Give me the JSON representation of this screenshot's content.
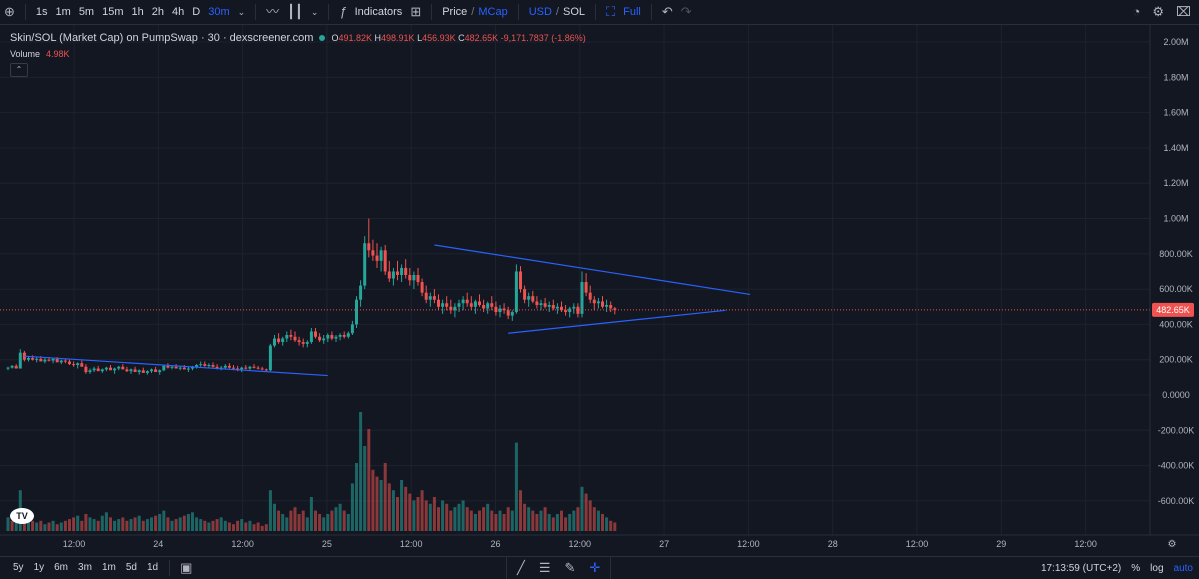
{
  "toolbar": {
    "intervals": [
      "1s",
      "1m",
      "5m",
      "15m",
      "1h",
      "2h",
      "4h",
      "D",
      "30m"
    ],
    "active_interval": "30m",
    "indicators_label": "Indicators",
    "price_label": "Price",
    "mcap_label": "MCap",
    "usd_label": "USD",
    "sol_label": "SOL",
    "full_label": "Full",
    "icons": [
      "plus-circle-icon",
      "line-chart-icon",
      "candles-icon",
      "fx-icon",
      "layout-grid-icon",
      "undo-icon",
      "redo-icon",
      "screenshot-icon",
      "gear-icon",
      "camera-icon"
    ]
  },
  "legend": {
    "symbol": "Skin/SOL (Market Cap) on PumpSwap · 30 · dexscreener.com",
    "o_key": "O",
    "o": "491.82K",
    "h_key": "H",
    "h": "498.91K",
    "l_key": "L",
    "l": "456.93K",
    "c_key": "C",
    "c": "482.65K",
    "change": "-9,171.7837 (-1.86%)",
    "volume_label": "Volume",
    "volume_value": "4.98K"
  },
  "colors": {
    "up": "#26a69a",
    "down": "#ef5350",
    "trendline": "#2962ff",
    "background": "#131722",
    "grid": "#1e222d"
  },
  "chart_data": {
    "type": "candlestick",
    "title": "Skin/SOL (Market Cap) on PumpSwap · 30 · dexscreener.com",
    "y_ticks": [
      "2.00M",
      "1.80M",
      "1.60M",
      "1.40M",
      "1.20M",
      "1.00M",
      "800.00K",
      "600.00K",
      "400.00K",
      "200.00K",
      "0.0000",
      "-200.00K",
      "-400.00K",
      "-600.00K"
    ],
    "ylim": [
      -680000,
      2040000
    ],
    "x_ticks": [
      "12:00",
      "24",
      "12:00",
      "25",
      "12:00",
      "26",
      "12:00",
      "27",
      "12:00",
      "28",
      "12:00",
      "29",
      "12:00"
    ],
    "last_price": 482650,
    "last_price_label": "482.65K",
    "candles": [
      [
        0,
        150,
        160,
        140,
        155
      ],
      [
        1,
        155,
        170,
        150,
        165
      ],
      [
        2,
        165,
        175,
        160,
        150
      ],
      [
        3,
        150,
        260,
        150,
        240
      ],
      [
        4,
        240,
        250,
        190,
        200
      ],
      [
        5,
        200,
        220,
        190,
        210
      ],
      [
        6,
        210,
        225,
        195,
        200
      ],
      [
        7,
        200,
        215,
        185,
        205
      ],
      [
        8,
        205,
        220,
        195,
        190
      ],
      [
        9,
        190,
        210,
        180,
        200
      ],
      [
        10,
        200,
        215,
        190,
        195
      ],
      [
        11,
        195,
        210,
        180,
        205
      ],
      [
        12,
        205,
        215,
        190,
        185
      ],
      [
        13,
        185,
        200,
        175,
        195
      ],
      [
        14,
        195,
        205,
        180,
        190
      ],
      [
        15,
        190,
        200,
        170,
        175
      ],
      [
        16,
        175,
        190,
        160,
        170
      ],
      [
        17,
        170,
        185,
        150,
        180
      ],
      [
        18,
        180,
        195,
        170,
        160
      ],
      [
        19,
        160,
        175,
        120,
        130
      ],
      [
        20,
        130,
        150,
        120,
        140
      ],
      [
        21,
        140,
        160,
        130,
        150
      ],
      [
        22,
        150,
        165,
        140,
        135
      ],
      [
        23,
        135,
        150,
        125,
        145
      ],
      [
        24,
        145,
        160,
        135,
        155
      ],
      [
        25,
        155,
        170,
        145,
        140
      ],
      [
        26,
        140,
        155,
        120,
        150
      ],
      [
        27,
        150,
        165,
        140,
        160
      ],
      [
        28,
        160,
        175,
        150,
        145
      ],
      [
        29,
        145,
        160,
        130,
        135
      ],
      [
        30,
        135,
        150,
        120,
        145
      ],
      [
        31,
        145,
        160,
        135,
        130
      ],
      [
        32,
        130,
        145,
        115,
        140
      ],
      [
        33,
        140,
        155,
        130,
        125
      ],
      [
        34,
        125,
        140,
        115,
        135
      ],
      [
        35,
        135,
        150,
        125,
        145
      ],
      [
        36,
        145,
        160,
        135,
        130
      ],
      [
        37,
        130,
        145,
        115,
        140
      ],
      [
        38,
        140,
        170,
        135,
        165
      ],
      [
        39,
        165,
        180,
        150,
        155
      ],
      [
        40,
        155,
        170,
        145,
        160
      ],
      [
        41,
        160,
        175,
        150,
        150
      ],
      [
        42,
        150,
        165,
        140,
        155
      ],
      [
        43,
        155,
        170,
        145,
        145
      ],
      [
        44,
        145,
        160,
        130,
        150
      ],
      [
        45,
        150,
        165,
        140,
        160
      ],
      [
        46,
        160,
        175,
        150,
        170
      ],
      [
        47,
        170,
        190,
        160,
        175
      ],
      [
        48,
        175,
        190,
        160,
        165
      ],
      [
        49,
        165,
        180,
        150,
        170
      ],
      [
        50,
        170,
        185,
        155,
        160
      ],
      [
        51,
        160,
        175,
        145,
        150
      ],
      [
        52,
        150,
        165,
        140,
        155
      ],
      [
        53,
        155,
        175,
        145,
        165
      ],
      [
        54,
        165,
        180,
        150,
        155
      ],
      [
        55,
        155,
        170,
        140,
        150
      ],
      [
        56,
        150,
        165,
        135,
        145
      ],
      [
        57,
        145,
        160,
        130,
        155
      ],
      [
        58,
        155,
        170,
        145,
        150
      ],
      [
        59,
        150,
        165,
        140,
        160
      ],
      [
        60,
        160,
        175,
        150,
        155
      ],
      [
        61,
        155,
        165,
        145,
        150
      ],
      [
        62,
        150,
        160,
        140,
        145
      ],
      [
        63,
        145,
        150,
        135,
        140
      ],
      [
        64,
        140,
        290,
        135,
        280
      ],
      [
        65,
        280,
        340,
        270,
        320
      ],
      [
        66,
        320,
        350,
        290,
        300
      ],
      [
        67,
        300,
        330,
        280,
        320
      ],
      [
        68,
        320,
        360,
        300,
        340
      ],
      [
        69,
        340,
        370,
        310,
        330
      ],
      [
        70,
        330,
        360,
        300,
        310
      ],
      [
        71,
        310,
        330,
        280,
        300
      ],
      [
        72,
        300,
        320,
        270,
        290
      ],
      [
        73,
        290,
        310,
        270,
        300
      ],
      [
        74,
        300,
        380,
        290,
        360
      ],
      [
        75,
        360,
        380,
        320,
        330
      ],
      [
        76,
        330,
        350,
        300,
        310
      ],
      [
        77,
        310,
        340,
        290,
        320
      ],
      [
        78,
        320,
        350,
        300,
        340
      ],
      [
        79,
        340,
        360,
        310,
        320
      ],
      [
        80,
        320,
        340,
        300,
        330
      ],
      [
        81,
        330,
        350,
        310,
        340
      ],
      [
        82,
        340,
        360,
        320,
        330
      ],
      [
        83,
        330,
        360,
        320,
        350
      ],
      [
        84,
        350,
        420,
        340,
        400
      ],
      [
        85,
        400,
        560,
        380,
        540
      ],
      [
        86,
        540,
        650,
        500,
        620
      ],
      [
        87,
        620,
        900,
        600,
        860
      ],
      [
        88,
        860,
        1000,
        780,
        820
      ],
      [
        89,
        820,
        880,
        760,
        790
      ],
      [
        90,
        790,
        860,
        720,
        760
      ],
      [
        91,
        760,
        840,
        700,
        820
      ],
      [
        92,
        820,
        850,
        680,
        700
      ],
      [
        93,
        700,
        760,
        640,
        660
      ],
      [
        94,
        660,
        720,
        620,
        700
      ],
      [
        95,
        700,
        760,
        650,
        680
      ],
      [
        96,
        680,
        740,
        640,
        720
      ],
      [
        97,
        720,
        770,
        660,
        680
      ],
      [
        98,
        680,
        720,
        620,
        650
      ],
      [
        99,
        650,
        700,
        600,
        680
      ],
      [
        100,
        680,
        720,
        620,
        640
      ],
      [
        101,
        640,
        660,
        560,
        580
      ],
      [
        102,
        580,
        620,
        520,
        540
      ],
      [
        103,
        540,
        580,
        500,
        560
      ],
      [
        104,
        560,
        600,
        520,
        540
      ],
      [
        105,
        540,
        570,
        480,
        500
      ],
      [
        106,
        500,
        540,
        460,
        520
      ],
      [
        107,
        520,
        560,
        480,
        500
      ],
      [
        108,
        500,
        540,
        460,
        480
      ],
      [
        109,
        480,
        520,
        440,
        500
      ],
      [
        110,
        500,
        540,
        470,
        520
      ],
      [
        111,
        520,
        560,
        480,
        540
      ],
      [
        112,
        540,
        580,
        500,
        520
      ],
      [
        113,
        520,
        560,
        480,
        500
      ],
      [
        114,
        500,
        540,
        460,
        530
      ],
      [
        115,
        530,
        570,
        500,
        510
      ],
      [
        116,
        510,
        540,
        470,
        490
      ],
      [
        117,
        490,
        530,
        460,
        520
      ],
      [
        118,
        520,
        560,
        480,
        500
      ],
      [
        119,
        500,
        530,
        450,
        470
      ],
      [
        120,
        470,
        510,
        440,
        490
      ],
      [
        121,
        490,
        520,
        460,
        480
      ],
      [
        122,
        480,
        500,
        430,
        450
      ],
      [
        123,
        450,
        480,
        420,
        470
      ],
      [
        124,
        470,
        740,
        460,
        700
      ],
      [
        125,
        700,
        730,
        580,
        600
      ],
      [
        126,
        600,
        620,
        520,
        540
      ],
      [
        127,
        540,
        580,
        500,
        560
      ],
      [
        128,
        560,
        590,
        520,
        530
      ],
      [
        129,
        530,
        560,
        490,
        510
      ],
      [
        130,
        510,
        540,
        480,
        520
      ],
      [
        131,
        520,
        550,
        490,
        500
      ],
      [
        132,
        500,
        530,
        470,
        510
      ],
      [
        133,
        510,
        540,
        480,
        490
      ],
      [
        134,
        490,
        520,
        460,
        500
      ],
      [
        135,
        500,
        530,
        470,
        480
      ],
      [
        136,
        480,
        510,
        450,
        470
      ],
      [
        137,
        470,
        500,
        440,
        490
      ],
      [
        138,
        490,
        520,
        460,
        500
      ],
      [
        139,
        500,
        520,
        440,
        460
      ],
      [
        140,
        460,
        700,
        440,
        640
      ],
      [
        141,
        640,
        690,
        560,
        580
      ],
      [
        142,
        580,
        620,
        520,
        540
      ],
      [
        143,
        540,
        560,
        480,
        520
      ],
      [
        144,
        520,
        550,
        490,
        530
      ],
      [
        145,
        530,
        560,
        490,
        500
      ],
      [
        146,
        500,
        540,
        470,
        510
      ],
      [
        147,
        510,
        530,
        470,
        491
      ],
      [
        148,
        491,
        499,
        457,
        483
      ]
    ],
    "volume": [
      40,
      30,
      35,
      120,
      60,
      40,
      30,
      25,
      30,
      20,
      25,
      30,
      20,
      25,
      30,
      35,
      40,
      45,
      30,
      50,
      40,
      35,
      30,
      45,
      55,
      40,
      30,
      35,
      40,
      30,
      35,
      40,
      45,
      30,
      35,
      40,
      45,
      50,
      60,
      40,
      30,
      35,
      40,
      45,
      50,
      55,
      40,
      35,
      30,
      25,
      30,
      35,
      40,
      30,
      25,
      20,
      30,
      35,
      25,
      30,
      20,
      25,
      15,
      20,
      120,
      80,
      60,
      50,
      40,
      60,
      70,
      50,
      60,
      40,
      100,
      60,
      50,
      40,
      50,
      60,
      70,
      80,
      60,
      50,
      140,
      200,
      350,
      250,
      300,
      180,
      160,
      150,
      200,
      140,
      120,
      100,
      150,
      130,
      110,
      90,
      100,
      120,
      90,
      80,
      100,
      70,
      90,
      80,
      60,
      70,
      80,
      90,
      70,
      60,
      50,
      60,
      70,
      80,
      60,
      50,
      60,
      50,
      70,
      60,
      260,
      120,
      80,
      70,
      60,
      50,
      60,
      70,
      50,
      40,
      50,
      60,
      40,
      50,
      60,
      70,
      130,
      110,
      90,
      70,
      60,
      50,
      40,
      30,
      25
    ],
    "volume_up": [
      true,
      false,
      true,
      true,
      false,
      true,
      false,
      true,
      false,
      true,
      false,
      true,
      false,
      true,
      false,
      false,
      false,
      true,
      false,
      false,
      true,
      true,
      false,
      true,
      true,
      false,
      true,
      true,
      false,
      false,
      true,
      false,
      true,
      false,
      true,
      true,
      false,
      true,
      true,
      false,
      true,
      false,
      true,
      false,
      true,
      true,
      true,
      true,
      false,
      true,
      false,
      false,
      true,
      true,
      false,
      false,
      false,
      true,
      false,
      true,
      false,
      false,
      false,
      false,
      true,
      true,
      false,
      true,
      true,
      false,
      false,
      false,
      false,
      true,
      true,
      false,
      false,
      true,
      true,
      false,
      true,
      true,
      false,
      true,
      true,
      true,
      true,
      true,
      false,
      false,
      false,
      true,
      false,
      false,
      true,
      false,
      true,
      false,
      false,
      true,
      false,
      false,
      false,
      true,
      false,
      false,
      true,
      false,
      false,
      true,
      true,
      true,
      false,
      false,
      true,
      false,
      false,
      true,
      false,
      false,
      true,
      false,
      false,
      true,
      true,
      false,
      false,
      true,
      false,
      false,
      true,
      false,
      true,
      false,
      true,
      false,
      false,
      true,
      true,
      false,
      true,
      false,
      false,
      false,
      true,
      false,
      true,
      false,
      false
    ],
    "trendlines": [
      {
        "from": [
          4,
          220
        ],
        "to": [
          78,
          110
        ]
      },
      {
        "from": [
          104,
          850
        ],
        "to": [
          181,
          570
        ]
      },
      {
        "from": [
          122,
          350
        ],
        "to": [
          175,
          480
        ]
      }
    ]
  },
  "bottom": {
    "ranges": [
      "5y",
      "1y",
      "6m",
      "3m",
      "1m",
      "5d",
      "1d"
    ],
    "time": "17:13:59 (UTC+2)",
    "percent_label": "%",
    "log_label": "log",
    "auto_label": "auto"
  }
}
